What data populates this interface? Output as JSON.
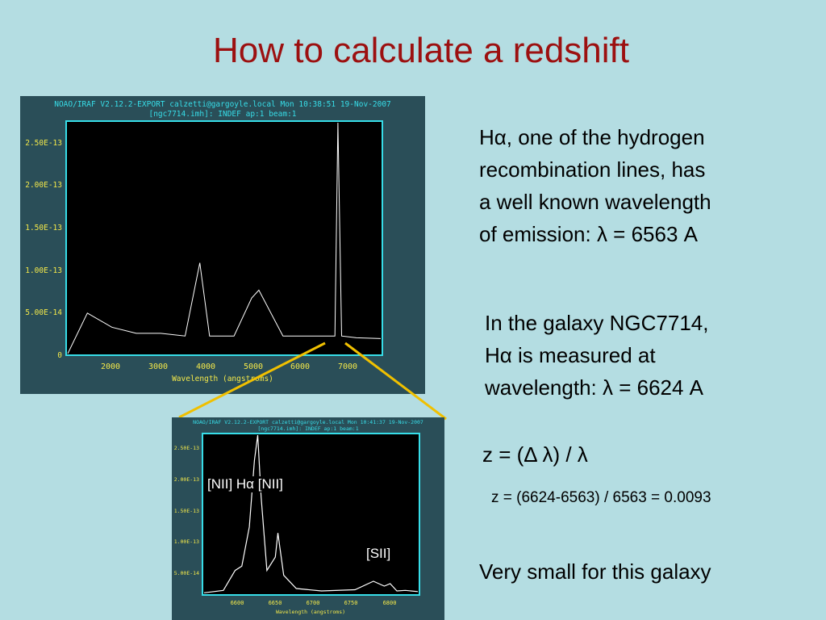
{
  "title": "How to calculate a redshift",
  "plot1": {
    "header_line1": "NOAO/IRAF V2.12.2-EXPORT calzetti@gargoyle.local Mon 10:38:51 19-Nov-2007",
    "header_line2": "[ngc7714.imh]:  INDEF ap:1 beam:1",
    "y_ticks": [
      "2.50E-13",
      "2.00E-13",
      "1.50E-13",
      "1.00E-13",
      "5.00E-14",
      "0"
    ],
    "x_ticks": [
      "2000",
      "3000",
      "4000",
      "5000",
      "6000",
      "7000"
    ],
    "xlabel": "Wavelength (angstroms)"
  },
  "plot2": {
    "header_line1": "NOAO/IRAF V2.12.2-EXPORT calzetti@gargoyle.local Mon 10:41:37 19-Nov-2007",
    "header_line2": "[ngc7714.imh]:  INDEF ap:1 beam:1",
    "y_ticks": [
      "2.50E-13",
      "2.00E-13",
      "1.50E-13",
      "1.00E-13",
      "5.00E-14"
    ],
    "x_ticks": [
      "6600",
      "6650",
      "6700",
      "6750",
      "6800"
    ],
    "xlabel": "Wavelength (angstroms)",
    "annotation_lines": "[NII] Hα [NII]",
    "annotation_sii": "[SII]"
  },
  "chart_data": [
    {
      "type": "line",
      "x": [
        1100,
        1500,
        2000,
        2500,
        3000,
        3500,
        3800,
        4000,
        4500,
        4861,
        5007,
        5500,
        6000,
        6563,
        6624,
        6700,
        7000,
        7500
      ],
      "values": [
        0,
        4.6e-14,
        3e-14,
        2.3e-14,
        2.3e-14,
        2e-14,
        1.03e-13,
        2e-14,
        2e-14,
        6.3e-14,
        7.2e-14,
        2e-14,
        2e-14,
        2e-14,
        2.62e-13,
        2e-14,
        1.8e-14,
        1.7e-14
      ],
      "xlim": [
        1100,
        7500
      ],
      "ylim": [
        0,
        2.62e-13
      ]
    },
    {
      "type": "line",
      "x": [
        6560,
        6583,
        6597,
        6605,
        6614,
        6620,
        6624,
        6628,
        6635,
        6645,
        6648,
        6655,
        6670,
        6700,
        6740,
        6762,
        6775,
        6782,
        6790,
        6800,
        6815
      ],
      "values": [
        1e-15,
        5e-15,
        3.8e-14,
        4.5e-14,
        1.1e-13,
        2.2e-13,
        2.62e-13,
        1.6e-13,
        3.8e-14,
        6e-14,
        1e-13,
        3e-14,
        8e-15,
        4e-15,
        6e-15,
        2e-14,
        1.2e-14,
        1.6e-14,
        4e-15,
        5e-15,
        3e-15
      ],
      "xlim": [
        6560,
        6815
      ],
      "ylim": [
        0,
        2.62e-13
      ]
    }
  ],
  "text": {
    "p1_line1": "Hα, one of the hydrogen",
    "p1_line2": "recombination lines, has",
    "p1_line3": "a well known wavelength",
    "p1_line4": "of emission: λ = 6563 A",
    "p2_line1": "In the galaxy NGC7714,",
    "p2_line2": "Hα is measured at",
    "p2_line3": "wavelength: λ = 6624 A",
    "formula": "z = (Δ λ)  / λ",
    "calc": "z = (6624-6563) / 6563 = 0.0093",
    "conclusion": "Very small for this galaxy"
  },
  "colors": {
    "background": "#b4dde2",
    "title": "#9c1010",
    "plot_frame": "#37dde8",
    "tick_labels": "#f3e84a",
    "zoom_lines": "#f0c000"
  }
}
